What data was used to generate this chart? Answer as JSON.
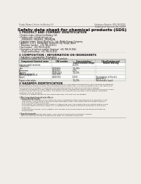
{
  "bg_color": "#f0ede8",
  "header_left": "Product Name: Lithium Ion Battery Cell",
  "header_right_line1": "Substance Number: SDS-LIB-00010",
  "header_right_line2": "Established / Revision: Dec.1.2019",
  "title": "Safety data sheet for chemical products (SDS)",
  "section1_title": "1 PRODUCT AND COMPANY IDENTIFICATION",
  "section1_lines": [
    "• Product name: Lithium Ion Battery Cell",
    "• Product code: Cylindrical-type cell",
    "    (IVR18650U, IVR18650L, IVR18650A)",
    "• Company name:  Sanyo Electric Co., Ltd., Mobile Energy Company",
    "• Address:  2-21-1  Kannondori, Sunonshi-City, Hyogo, Japan",
    "• Telephone number:  +81-798-20-4111",
    "• Fax number:  +81-798-26-4120",
    "• Emergency telephone number (daytime): +81-798-20-3062",
    "    (Night and holiday): +81-798-26-4120"
  ],
  "section2_title": "2 COMPOSITION / INFORMATION ON INGREDIENTS",
  "section2_intro": "• Substance or preparation: Preparation",
  "section2_sub": "• Information about the chemical nature of product:",
  "table_headers": [
    "Component/chemical name",
    "CAS number",
    "Concentration /\nConcentration range",
    "Classification and\nhazard labeling"
  ],
  "table_rows": [
    [
      "Lithium cobalt tantalate\n(LiMnCoO₂)",
      "-",
      "30-60%",
      "-"
    ],
    [
      "Iron",
      "7439-89-6",
      "15-25%",
      "-"
    ],
    [
      "Aluminium",
      "7429-90-5",
      "2-5%",
      "-"
    ],
    [
      "Graphite\n(Hard graphite-1)\n(Artificial graphite-1)",
      "77782-42-5\n7782-44-0",
      "10-20%",
      "-"
    ],
    [
      "Copper",
      "7440-50-8",
      "5-15%",
      "Sensitization of the skin\ngroup No.2"
    ],
    [
      "Organic electrolyte",
      "-",
      "10-20%",
      "Inflammable liquid"
    ]
  ],
  "section3_title": "3 HAZARDS IDENTIFICATION",
  "section3_text": [
    "For the battery cell, chemical substances are stored in a hermetically sealed metal case, designed to withstand",
    "temperatures to prevent electrolyte combustion during normal use. As a result, during normal use, there is no",
    "physical danger of ignition or aspiration and therefore danger of hazardous substance leakage.",
    "  However, if exposed to a fire, added mechanical shocks, decomposed, when electric current abnormally flows,",
    "the gas release vent can be operated. The battery cell case will be breached of fire-extreme, hazardous",
    "materials may be released.",
    "  Moreover, if heated strongly by the surrounding fire, soot gas may be emitted."
  ],
  "section3_hazard_title": "• Most important hazard and effects:",
  "section3_human_title": "  Human health effects:",
  "section3_human_lines": [
    "    Inhalation: The release of the electrolyte has an anesthesia action and stimulates in respiratory tract.",
    "    Skin contact: The release of the electrolyte stimulates a skin. The electrolyte skin contact causes a",
    "    sore and stimulation on the skin.",
    "    Eye contact: The release of the electrolyte stimulates eyes. The electrolyte eye contact causes a sore",
    "    and stimulation on the eye. Especially, a substance that causes a strong inflammation of the eye is",
    "    contained.",
    "    Environmental effects: Since a battery cell remains in the environment, do not throw out it into the",
    "    environment."
  ],
  "section3_specific_title": "• Specific hazards:",
  "section3_specific_lines": [
    "  If the electrolyte contacts with water, it will generate detrimental hydrogen fluoride.",
    "  Since the used electrolyte is inflammable liquid, do not bring close to fire."
  ]
}
